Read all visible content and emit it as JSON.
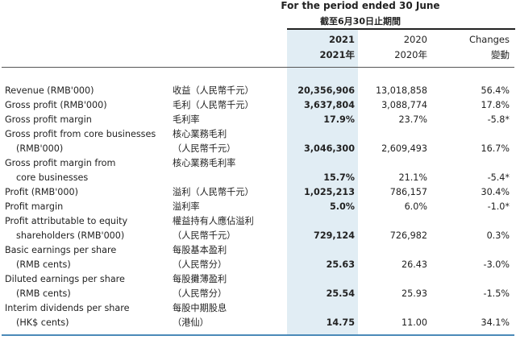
{
  "header": {
    "period_en": "For the period ended 30 June",
    "period_zh": "截至6月30日止期間",
    "columns": [
      {
        "en": "2021",
        "zh": "2021年"
      },
      {
        "en": "2020",
        "zh": "2020年"
      },
      {
        "en": "Changes",
        "zh": "變動"
      }
    ]
  },
  "rows": [
    {
      "label": [
        "Revenue (RMB'000)"
      ],
      "zh": [
        "收益（人民幣千元）"
      ],
      "v2021": "20,356,906",
      "v2020": "13,018,858",
      "change": "56.4%"
    },
    {
      "label": [
        "Gross profit (RMB'000)"
      ],
      "zh": [
        "毛利（人民幣千元）"
      ],
      "v2021": "3,637,804",
      "v2020": "3,088,774",
      "change": "17.8%"
    },
    {
      "label": [
        "Gross profit margin"
      ],
      "zh": [
        "毛利率"
      ],
      "v2021": "17.9%",
      "v2020": "23.7%",
      "change": "-5.8*"
    },
    {
      "label": [
        "Gross profit from core businesses",
        "(RMB'000)"
      ],
      "zh": [
        "核心業務毛利",
        "（人民幣千元）"
      ],
      "v2021": "3,046,300",
      "v2020": "2,609,493",
      "change": "16.7%"
    },
    {
      "label": [
        "Gross profit margin from",
        "core businesses"
      ],
      "zh": [
        "核心業務毛利率",
        ""
      ],
      "v2021": "15.7%",
      "v2020": "21.1%",
      "change": "-5.4*"
    },
    {
      "label": [
        "Profit (RMB'000)"
      ],
      "zh": [
        "溢利（人民幣千元）"
      ],
      "v2021": "1,025,213",
      "v2020": "786,157",
      "change": "30.4%"
    },
    {
      "label": [
        "Profit margin"
      ],
      "zh": [
        "溢利率"
      ],
      "v2021": "5.0%",
      "v2020": "6.0%",
      "change": "-1.0*"
    },
    {
      "label": [
        "Profit attributable to equity",
        "shareholders (RMB'000)"
      ],
      "zh": [
        "權益持有人應佔溢利",
        "（人民幣千元）"
      ],
      "v2021": "729,124",
      "v2020": "726,982",
      "change": "0.3%"
    },
    {
      "label": [
        "Basic earnings per share",
        "(RMB cents)"
      ],
      "zh": [
        "每股基本盈利",
        "（人民幣分）"
      ],
      "v2021": "25.63",
      "v2020": "26.43",
      "change": "-3.0%"
    },
    {
      "label": [
        "Diluted earnings per share",
        "(RMB cents)"
      ],
      "zh": [
        "每股攤薄盈利",
        "（人民幣分）"
      ],
      "v2021": "25.54",
      "v2020": "25.93",
      "change": "-1.5%"
    },
    {
      "label": [
        "Interim dividends per share",
        "(HK$ cents)"
      ],
      "zh": [
        "每股中期股息",
        "（港仙）"
      ],
      "v2021": "14.75",
      "v2020": "11.00",
      "change": "34.1%"
    }
  ]
}
